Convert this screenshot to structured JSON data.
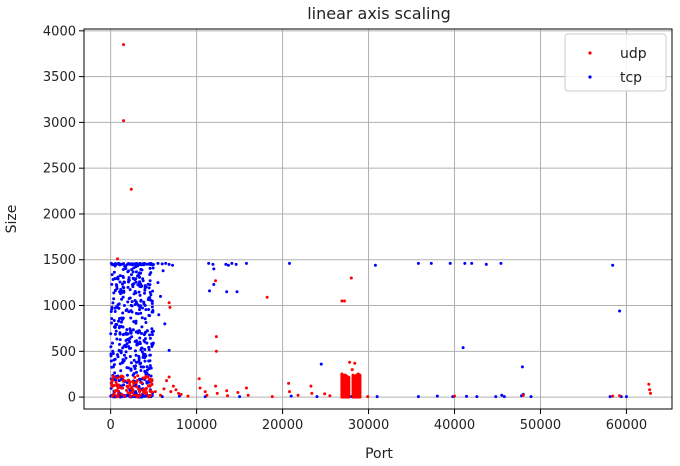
{
  "chart_data": {
    "type": "scatter",
    "title": "linear axis scaling",
    "xlabel": "Port",
    "ylabel": "Size",
    "xlim": [
      -3100,
      65300
    ],
    "ylim": [
      -130,
      4020
    ],
    "x_ticks": [
      0,
      10000,
      20000,
      30000,
      40000,
      50000,
      60000
    ],
    "y_ticks": [
      0,
      500,
      1000,
      1500,
      2000,
      2500,
      3000,
      3500,
      4000
    ],
    "grid": true,
    "legend_position": "top-right",
    "series": [
      {
        "name": "udp",
        "color": "#ff0000",
        "marker": "dot",
        "points": [
          [
            1500,
            3850
          ],
          [
            1500,
            3020
          ],
          [
            2400,
            2270
          ],
          [
            800,
            1510
          ],
          [
            6800,
            1030
          ],
          [
            6900,
            980
          ],
          [
            12200,
            1270
          ],
          [
            18200,
            1090
          ],
          [
            26900,
            1050
          ],
          [
            27200,
            1050
          ],
          [
            28000,
            1300
          ],
          [
            12300,
            660
          ],
          [
            12300,
            500
          ],
          [
            12200,
            120
          ],
          [
            27800,
            380
          ],
          [
            28400,
            370
          ],
          [
            28100,
            300
          ],
          [
            6800,
            220
          ],
          [
            7300,
            120
          ],
          [
            7600,
            80
          ],
          [
            7900,
            40
          ],
          [
            10300,
            200
          ],
          [
            10400,
            100
          ],
          [
            11000,
            60
          ],
          [
            11200,
            20
          ],
          [
            12400,
            40
          ],
          [
            13500,
            70
          ],
          [
            14800,
            50
          ],
          [
            15800,
            100
          ],
          [
            16000,
            20
          ],
          [
            20700,
            150
          ],
          [
            20800,
            60
          ],
          [
            23300,
            120
          ],
          [
            23400,
            40
          ],
          [
            62600,
            140
          ],
          [
            62700,
            80
          ],
          [
            62800,
            40
          ],
          [
            2000,
            180
          ],
          [
            1100,
            220
          ],
          [
            1900,
            120
          ],
          [
            3000,
            160
          ],
          [
            3800,
            210
          ],
          [
            2600,
            80
          ],
          [
            4600,
            120
          ],
          [
            5200,
            60
          ],
          [
            5800,
            20
          ],
          [
            6500,
            180
          ],
          [
            6200,
            90
          ],
          [
            7000,
            60
          ],
          [
            8200,
            30
          ],
          [
            9000,
            10
          ],
          [
            13600,
            15
          ],
          [
            18800,
            5
          ],
          [
            21800,
            20
          ],
          [
            24900,
            35
          ],
          [
            25500,
            15
          ],
          [
            29900,
            5
          ],
          [
            40000,
            10
          ],
          [
            48000,
            20
          ],
          [
            58400,
            10
          ],
          [
            59200,
            15
          ],
          [
            500,
            60
          ],
          [
            1300,
            30
          ],
          [
            2200,
            40
          ],
          [
            3400,
            20
          ]
        ],
        "columns": [
          {
            "x": 26900,
            "y_max": 260
          },
          {
            "x": 27100,
            "y_max": 250
          },
          {
            "x": 27300,
            "y_max": 240
          },
          {
            "x": 27500,
            "y_max": 230
          },
          {
            "x": 27700,
            "y_max": 220
          },
          {
            "x": 28200,
            "y_max": 250
          },
          {
            "x": 28400,
            "y_max": 230
          },
          {
            "x": 28600,
            "y_max": 240
          },
          {
            "x": 28800,
            "y_max": 260
          },
          {
            "x": 29000,
            "y_max": 240
          }
        ]
      },
      {
        "name": "tcp",
        "color": "#0000ff",
        "marker": "dot",
        "dense_block": {
          "x_range": [
            0,
            5000
          ],
          "y_range": [
            0,
            1460
          ]
        },
        "points": [
          [
            5500,
            1460
          ],
          [
            6000,
            1455
          ],
          [
            6400,
            1460
          ],
          [
            6800,
            1450
          ],
          [
            7200,
            1440
          ],
          [
            6100,
            1380
          ],
          [
            5500,
            1250
          ],
          [
            5800,
            1100
          ],
          [
            5600,
            900
          ],
          [
            6300,
            800
          ],
          [
            6800,
            510
          ],
          [
            11400,
            1460
          ],
          [
            11900,
            1450
          ],
          [
            12000,
            1400
          ],
          [
            11500,
            1160
          ],
          [
            12000,
            1230
          ],
          [
            13400,
            1450
          ],
          [
            13700,
            1440
          ],
          [
            14100,
            1460
          ],
          [
            14600,
            1450
          ],
          [
            13500,
            1150
          ],
          [
            14700,
            1150
          ],
          [
            15800,
            1460
          ],
          [
            20800,
            1460
          ],
          [
            24500,
            360
          ],
          [
            30800,
            1440
          ],
          [
            35800,
            1460
          ],
          [
            37300,
            1460
          ],
          [
            39500,
            1460
          ],
          [
            41200,
            1460
          ],
          [
            42000,
            1460
          ],
          [
            43700,
            1450
          ],
          [
            45400,
            1460
          ],
          [
            41000,
            540
          ],
          [
            47900,
            330
          ],
          [
            58400,
            1440
          ],
          [
            59200,
            940
          ],
          [
            60000,
            5
          ],
          [
            6000,
            5
          ],
          [
            8000,
            10
          ],
          [
            11000,
            5
          ],
          [
            15000,
            5
          ],
          [
            21000,
            10
          ],
          [
            24000,
            5
          ],
          [
            28000,
            5
          ],
          [
            31000,
            5
          ],
          [
            35800,
            5
          ],
          [
            38000,
            10
          ],
          [
            39800,
            5
          ],
          [
            41400,
            8
          ],
          [
            42600,
            5
          ],
          [
            44800,
            5
          ],
          [
            45500,
            20
          ],
          [
            45800,
            5
          ],
          [
            47800,
            15
          ],
          [
            48000,
            30
          ],
          [
            48900,
            5
          ],
          [
            58100,
            5
          ],
          [
            59400,
            5
          ]
        ]
      }
    ]
  }
}
